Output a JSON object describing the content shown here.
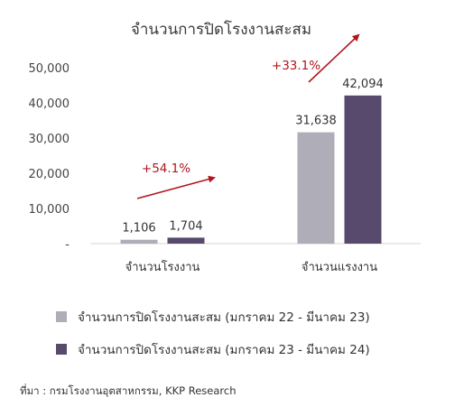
{
  "chart_data": {
    "type": "bar",
    "title": "จำนวนการปิดโรงงานสะสม",
    "categories": [
      "จำนวนโรงงาน",
      "จำนวนแรงงาน"
    ],
    "series": [
      {
        "name": "จำนวนการปิดโรงงานสะสม (มกราคม 22 - มีนาคม 23)",
        "values": [
          1106,
          31638
        ],
        "labels": [
          "1,106",
          "31,638"
        ],
        "color": "#aeadb8"
      },
      {
        "name": "จำนวนการปิดโรงงานสะสม (มกราคม 23 - มีนาคม 24)",
        "values": [
          1704,
          42094
        ],
        "labels": [
          "1,704",
          "42,094"
        ],
        "color": "#584a6c"
      }
    ],
    "ylim": [
      0,
      50000
    ],
    "yticks": [
      0,
      10000,
      20000,
      30000,
      40000,
      50000
    ],
    "ytick_labels": [
      "-",
      "10,000",
      "20,000",
      "30,000",
      "40,000",
      "50,000"
    ],
    "grid": false,
    "legend_position": "bottom",
    "annotations": [
      {
        "category": "จำนวนโรงงาน",
        "text": "+54.1%",
        "color": "#b0151d"
      },
      {
        "category": "จำนวนแรงงาน",
        "text": "+33.1%",
        "color": "#b0151d"
      }
    ]
  },
  "source": "ที่มา : กรมโรงงานอุตสาหกรรม, KKP Research"
}
